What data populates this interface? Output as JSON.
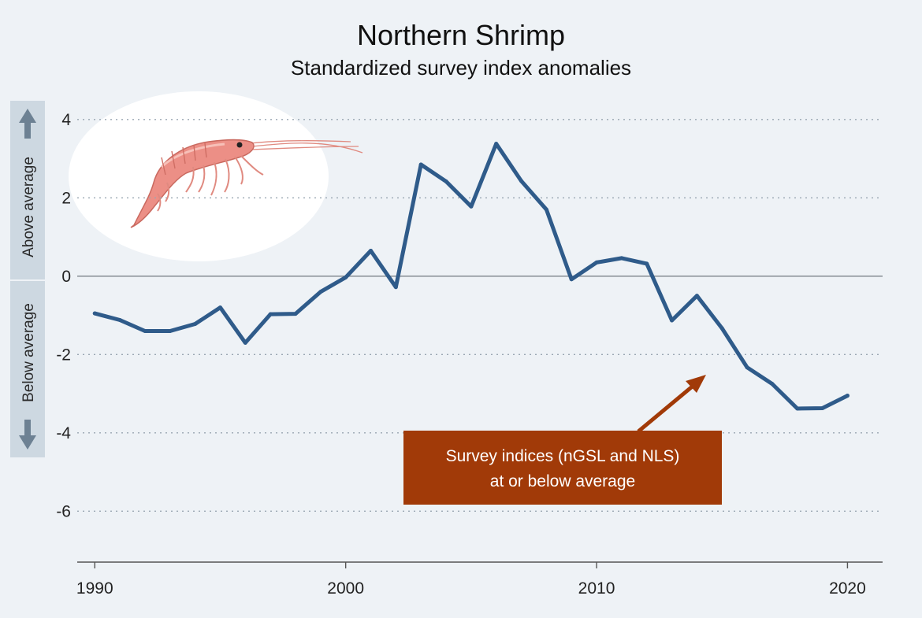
{
  "chart_data": {
    "type": "line",
    "title": "Northern Shrimp",
    "subtitle": "Standardized survey index anomalies",
    "xlabel": "",
    "ylabel": "",
    "xlim": [
      1989.3,
      2021.4
    ],
    "ylim": [
      -7.3,
      4.8
    ],
    "x_ticks": [
      1990,
      2000,
      2010,
      2020
    ],
    "y_ticks": [
      4,
      2,
      0,
      -2,
      -4,
      -6
    ],
    "grid": true,
    "side_labels": {
      "above": "Above average",
      "below": "Below average"
    },
    "series": [
      {
        "color": "#2f5b8a",
        "x": [
          1990,
          1991,
          1992,
          1993,
          1994,
          1995,
          1996,
          1997,
          1998,
          1999,
          2000,
          2001,
          2002,
          2003,
          2004,
          2005,
          2006,
          2007,
          2008,
          2009,
          2010,
          2011,
          2012,
          2013,
          2014,
          2015,
          2016,
          2017,
          2018,
          2019,
          2020
        ],
        "y": [
          -0.95,
          -1.12,
          -1.4,
          -1.4,
          -1.22,
          -0.8,
          -1.7,
          -0.97,
          -0.96,
          -0.4,
          -0.03,
          0.65,
          -0.28,
          2.85,
          2.42,
          1.78,
          3.38,
          2.43,
          1.7,
          -0.08,
          0.35,
          0.46,
          0.32,
          -1.13,
          -0.5,
          -1.33,
          -2.33,
          -2.75,
          -3.38,
          -3.37,
          -3.05
        ]
      }
    ],
    "annotations": [
      {
        "text_line1": "Survey indices (nGSL and NLS)",
        "text_line2": "at or below average",
        "color": "#a13a08"
      }
    ],
    "icons": [
      "shrimp-illustration",
      "up-arrow-icon",
      "down-arrow-icon"
    ]
  }
}
